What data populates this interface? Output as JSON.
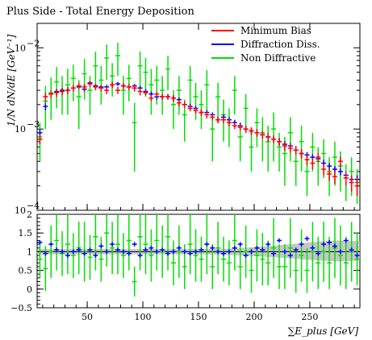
{
  "title": "Plus Side - Total Energy Deposition",
  "xlabel": "∑E_plus [GeV]",
  "ylabel": "1/N dN/dE [GeV⁻¹]",
  "colors": {
    "minbias": "#ff0000",
    "diffraction": "#0000ff",
    "nondiffractive": "#00e000",
    "band": "#bdbdbd"
  },
  "chart_data": [
    {
      "type": "scatter",
      "panel": "main",
      "yscale": "log",
      "xlim": [
        5,
        295
      ],
      "ylim": [
        0.0001,
        0.02
      ],
      "yticks": [
        0.0001,
        0.001,
        0.01
      ],
      "ytick_labels": [
        "10",
        "10",
        "10"
      ],
      "ytick_exponents": [
        "−4",
        "−3",
        "−2"
      ],
      "legend": {
        "placement": "top-right",
        "entries": [
          "Minimum Bias",
          "Diffraction Diss.",
          "Non Diffractive"
        ]
      },
      "x": [
        7.5,
        12.5,
        17.5,
        22.5,
        27.5,
        32.5,
        37.5,
        42.5,
        47.5,
        52.5,
        57.5,
        62.5,
        67.5,
        72.5,
        77.5,
        82.5,
        87.5,
        92.5,
        97.5,
        102.5,
        107.5,
        112.5,
        117.5,
        122.5,
        127.5,
        132.5,
        137.5,
        142.5,
        147.5,
        152.5,
        157.5,
        162.5,
        167.5,
        172.5,
        177.5,
        182.5,
        187.5,
        192.5,
        197.5,
        202.5,
        207.5,
        212.5,
        217.5,
        222.5,
        227.5,
        232.5,
        237.5,
        242.5,
        247.5,
        252.5,
        257.5,
        262.5,
        267.5,
        272.5,
        277.5,
        282.5,
        287.5,
        292.5
      ],
      "series": [
        {
          "name": "Minimum Bias",
          "color": "#ff0000",
          "values": [
            0.00075,
            0.0025,
            0.0027,
            0.0028,
            0.0029,
            0.003,
            0.0032,
            0.0034,
            0.0033,
            0.0036,
            0.0033,
            0.0032,
            0.003,
            0.0035,
            0.003,
            0.0034,
            0.0033,
            0.0032,
            0.0029,
            0.0028,
            0.0024,
            0.0027,
            0.0025,
            0.0025,
            0.0024,
            0.0021,
            0.002,
            0.0018,
            0.0017,
            0.0016,
            0.0015,
            0.0014,
            0.0013,
            0.0013,
            0.0012,
            0.0011,
            0.00105,
            0.001,
            0.00095,
            0.0009,
            0.00085,
            0.0008,
            0.00075,
            0.0007,
            0.00062,
            0.00058,
            0.00055,
            0.0005,
            0.00042,
            0.00038,
            0.00045,
            0.00032,
            0.00028,
            0.00026,
            0.0004,
            0.00025,
            0.00022,
            0.0002
          ],
          "errors": [
            0.0001,
            0.0003,
            0.0003,
            0.0003,
            0.0003,
            0.0003,
            0.0003,
            0.0003,
            0.0003,
            0.0003,
            0.0003,
            0.0003,
            0.0003,
            0.0003,
            0.0003,
            0.0003,
            0.0003,
            0.0003,
            0.0003,
            0.0002,
            0.0002,
            0.0002,
            0.0002,
            0.0002,
            0.0002,
            0.0002,
            0.0002,
            0.00015,
            0.00015,
            0.00015,
            0.00015,
            0.00012,
            0.00012,
            0.00012,
            0.00012,
            0.0001,
            0.0001,
            0.0001,
            0.0001,
            0.0001,
            0.0001,
            0.0001,
            8e-05,
            8e-05,
            8e-05,
            7e-05,
            7e-05,
            7e-05,
            6e-05,
            6e-05,
            6e-05,
            5e-05,
            5e-05,
            5e-05,
            6e-05,
            5e-05,
            5e-05,
            5e-05
          ]
        },
        {
          "name": "Diffraction Diss.",
          "color": "#0000ff",
          "values": [
            0.0009,
            0.0019,
            0.0027,
            0.0029,
            0.003,
            0.003,
            0.0032,
            0.0033,
            0.0031,
            0.0037,
            0.0034,
            0.0033,
            0.0033,
            0.0035,
            0.0036,
            0.0034,
            0.0033,
            0.0034,
            0.0032,
            0.0029,
            0.0027,
            0.0025,
            0.0025,
            0.0025,
            0.0024,
            0.0023,
            0.002,
            0.0019,
            0.0018,
            0.0016,
            0.0016,
            0.0015,
            0.0013,
            0.0014,
            0.0013,
            0.0012,
            0.0011,
            0.001,
            0.00095,
            0.0009,
            0.00085,
            0.0008,
            0.00075,
            0.0007,
            0.00065,
            0.00062,
            0.00055,
            0.0005,
            0.00048,
            0.00045,
            0.00043,
            0.00038,
            0.00035,
            0.00032,
            0.0003,
            0.00027,
            0.00024,
            0.00024
          ],
          "errors": [
            0.0001,
            0.0002,
            0.0002,
            0.0002,
            0.0002,
            0.0002,
            0.0002,
            0.0002,
            0.0002,
            0.0002,
            0.0002,
            0.0002,
            0.0002,
            0.0002,
            0.0002,
            0.0002,
            0.0002,
            0.0002,
            0.0002,
            0.0002,
            0.0002,
            0.0002,
            0.0002,
            0.0002,
            0.0002,
            0.00015,
            0.00015,
            0.00015,
            0.00012,
            0.00012,
            0.00012,
            0.0001,
            0.0001,
            0.0001,
            0.0001,
            0.0001,
            0.0001,
            8e-05,
            8e-05,
            8e-05,
            7e-05,
            7e-05,
            6e-05,
            6e-05,
            6e-05,
            5e-05,
            5e-05,
            5e-05,
            4e-05,
            4e-05,
            4e-05,
            4e-05,
            3e-05,
            3e-05,
            3e-05,
            3e-05,
            3e-05,
            3e-05
          ]
        },
        {
          "name": "Non Diffractive",
          "color": "#00e000",
          "values": [
            0.0008,
            0.0022,
            0.0028,
            0.0038,
            0.003,
            0.0035,
            0.0042,
            0.0025,
            0.0048,
            0.003,
            0.006,
            0.004,
            0.0075,
            0.0045,
            0.008,
            0.003,
            0.0042,
            0.0012,
            0.006,
            0.005,
            0.0035,
            0.004,
            0.003,
            0.0055,
            0.002,
            0.003,
            0.0015,
            0.004,
            0.0025,
            0.002,
            0.0035,
            0.001,
            0.0025,
            0.0015,
            0.0012,
            0.003,
            0.0008,
            0.0018,
            0.0006,
            0.0012,
            0.0009,
            0.0007,
            0.001,
            0.0006,
            0.0005,
            0.0009,
            0.0004,
            0.0007,
            0.0003,
            0.0006,
            0.0004,
            0.0005,
            0.0003,
            0.00045,
            0.00035,
            0.00025,
            0.0003,
            0.00022
          ],
          "errors": [
            0.0004,
            0.0012,
            0.0015,
            0.002,
            0.0015,
            0.002,
            0.002,
            0.0015,
            0.0025,
            0.0015,
            0.003,
            0.002,
            0.0035,
            0.002,
            0.0035,
            0.0015,
            0.002,
            0.0009,
            0.003,
            0.0025,
            0.002,
            0.002,
            0.0015,
            0.0025,
            0.001,
            0.0015,
            0.0008,
            0.002,
            0.0012,
            0.001,
            0.0018,
            0.0006,
            0.0012,
            0.0008,
            0.0006,
            0.0015,
            0.0004,
            0.0009,
            0.0003,
            0.0006,
            0.0005,
            0.0004,
            0.0006,
            0.0003,
            0.0003,
            0.0005,
            0.0002,
            0.0004,
            0.00015,
            0.0003,
            0.0002,
            0.00025,
            0.00015,
            0.00025,
            0.00018,
            0.00012,
            0.00015,
            0.0001
          ]
        }
      ]
    },
    {
      "type": "scatter",
      "panel": "ratio",
      "xlim": [
        5,
        295
      ],
      "ylim": [
        -0.5,
        2
      ],
      "yticks": [
        -0.5,
        0,
        0.5,
        1,
        1.5,
        2
      ],
      "ytick_labels": [
        "−0.5",
        "0",
        "0.5",
        "1",
        "1.5",
        "2"
      ],
      "xticks": [
        50,
        100,
        150,
        200,
        250
      ],
      "xtick_labels": [
        "50",
        "100",
        "150",
        "200",
        "250"
      ],
      "reference": 1,
      "band": {
        "x": [
          5,
          50,
          100,
          150,
          175,
          200,
          225,
          250,
          275,
          295
        ],
        "low": [
          0.93,
          0.93,
          0.93,
          0.93,
          0.92,
          0.88,
          0.84,
          0.78,
          0.74,
          0.76
        ],
        "high": [
          1.07,
          1.07,
          1.07,
          1.07,
          1.08,
          1.12,
          1.18,
          1.25,
          1.3,
          1.28
        ]
      },
      "series": [
        {
          "name": "Diffraction Diss.",
          "color": "#0000ff",
          "values": [
            1.25,
            0.95,
            1.2,
            1.05,
            1.0,
            0.9,
            1.0,
            1.05,
            0.95,
            1.05,
            0.9,
            1.15,
            1.0,
            1.2,
            1.05,
            1.0,
            0.95,
            1.2,
            0.9,
            1.05,
            1.1,
            1.0,
            1.05,
            0.95,
            1.0,
            1.1,
            1.0,
            0.95,
            1.0,
            1.05,
            1.2,
            1.1,
            1.0,
            0.95,
            1.0,
            1.1,
            1.2,
            0.9,
            1.0,
            1.1,
            1.05,
            1.2,
            0.95,
            1.3,
            1.0,
            0.9,
            1.05,
            1.2,
            1.35,
            1.1,
            0.95,
            1.2,
            1.25,
            1.15,
            1.0,
            1.3,
            1.05,
            0.9
          ],
          "errors": [
            0.06,
            0.06,
            0.06,
            0.06,
            0.06,
            0.06,
            0.06,
            0.06,
            0.06,
            0.06,
            0.06,
            0.06,
            0.06,
            0.06,
            0.06,
            0.06,
            0.06,
            0.06,
            0.06,
            0.06,
            0.06,
            0.06,
            0.06,
            0.06,
            0.06,
            0.06,
            0.06,
            0.06,
            0.06,
            0.06,
            0.06,
            0.06,
            0.06,
            0.06,
            0.06,
            0.06,
            0.06,
            0.06,
            0.06,
            0.06,
            0.06,
            0.06,
            0.06,
            0.06,
            0.06,
            0.06,
            0.06,
            0.06,
            0.06,
            0.06,
            0.06,
            0.06,
            0.06,
            0.06,
            0.06,
            0.06,
            0.06,
            0.06
          ]
        },
        {
          "name": "Non Diffractive",
          "color": "#00e000",
          "values": [
            0.8,
            0.55,
            1.0,
            1.3,
            0.95,
            1.2,
            0.9,
            1.1,
            1.0,
            0.85,
            1.4,
            0.8,
            1.5,
            1.1,
            1.2,
            0.9,
            1.3,
            0.2,
            1.4,
            1.2,
            0.9,
            1.3,
            1.0,
            1.4,
            0.7,
            1.0,
            0.6,
            1.2,
            0.9,
            0.8,
            1.2,
            0.6,
            1.1,
            0.8,
            0.7,
            1.3,
            0.6,
            1.0,
            0.5,
            0.9,
            0.8,
            0.7,
            1.1,
            0.6,
            0.6,
            1.1,
            0.5,
            0.9,
            0.5,
            1.0,
            0.7,
            1.0,
            0.7,
            1.1,
            0.9,
            0.7,
            1.0,
            0.8
          ],
          "errors": [
            0.5,
            0.6,
            0.7,
            0.8,
            0.6,
            0.8,
            0.6,
            0.7,
            0.8,
            0.6,
            0.9,
            0.6,
            0.9,
            0.7,
            0.8,
            0.6,
            0.8,
            0.4,
            0.9,
            0.8,
            0.7,
            0.8,
            0.7,
            0.9,
            0.6,
            0.7,
            0.6,
            0.8,
            0.7,
            0.6,
            0.8,
            0.6,
            0.7,
            0.6,
            0.6,
            0.8,
            0.6,
            0.7,
            0.6,
            0.7,
            0.7,
            0.6,
            0.8,
            0.6,
            0.6,
            0.8,
            0.6,
            0.7,
            0.6,
            0.8,
            0.7,
            0.8,
            0.7,
            0.8,
            0.8,
            0.7,
            0.8,
            0.7
          ]
        }
      ]
    }
  ]
}
